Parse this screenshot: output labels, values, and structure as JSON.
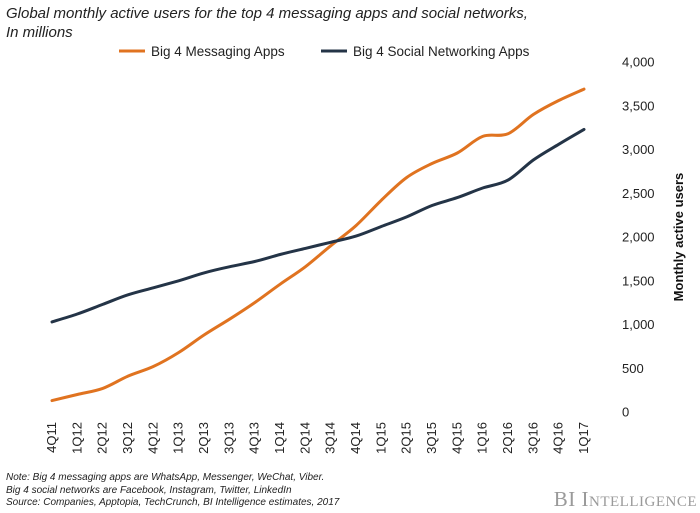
{
  "title_lines": [
    "Global monthly active users for the top 4 messaging apps and social networks,",
    "In millions"
  ],
  "notes": [
    "Note: Big 4 messaging apps are WhatsApp, Messenger, WeChat, Viber.",
    "Big 4 social networks are Facebook, Instagram, Twitter, LinkedIn",
    "Source: Companies,  Apptopia, TechCrunch,  BI Intelligence estimates, 2017"
  ],
  "brand": "BI Intelligence",
  "chart_data": {
    "type": "line",
    "title": "Global monthly active users for the top 4 messaging apps and social networks, In millions",
    "xlabel": "",
    "ylabel": "Monthly active users",
    "ylim": [
      0,
      4000
    ],
    "yticks": [
      0,
      500,
      1000,
      1500,
      2000,
      2500,
      3000,
      3500,
      4000
    ],
    "ytick_labels": [
      "0",
      "500",
      "1,000",
      "1,500",
      "2,000",
      "2,500",
      "3,000",
      "3,500",
      "4,000"
    ],
    "y_axis_side": "right",
    "grid": false,
    "legend_position": "top",
    "categories": [
      "4Q11",
      "1Q12",
      "2Q12",
      "3Q12",
      "4Q12",
      "1Q13",
      "2Q13",
      "3Q13",
      "4Q13",
      "1Q14",
      "2Q14",
      "3Q14",
      "4Q14",
      "1Q15",
      "2Q15",
      "3Q15",
      "4Q15",
      "1Q16",
      "2Q16",
      "3Q16",
      "4Q16",
      "1Q17"
    ],
    "series": [
      {
        "name": "Big 4 Messaging Apps",
        "color": "#e07320",
        "values": [
          130,
          200,
          270,
          410,
          520,
          680,
          880,
          1060,
          1250,
          1460,
          1660,
          1900,
          2130,
          2420,
          2680,
          2840,
          2960,
          3150,
          3180,
          3400,
          3560,
          3690
        ]
      },
      {
        "name": "Big 4 Social Networking Apps",
        "color": "#243447",
        "values": [
          1030,
          1120,
          1230,
          1340,
          1420,
          1500,
          1590,
          1660,
          1720,
          1800,
          1870,
          1940,
          2010,
          2120,
          2230,
          2360,
          2450,
          2560,
          2650,
          2880,
          3060,
          3230
        ]
      }
    ]
  }
}
